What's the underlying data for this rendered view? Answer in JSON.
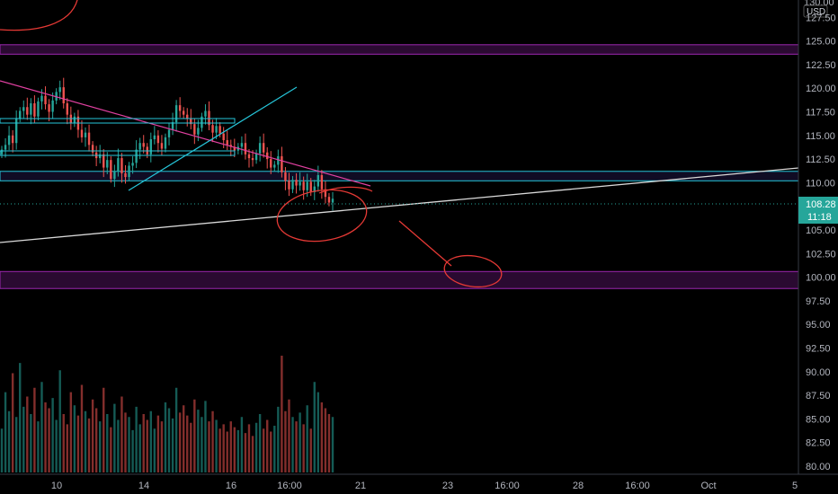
{
  "chart_data": {
    "type": "candlestick",
    "title": "",
    "currency": "USD",
    "price_axis": {
      "min": 80,
      "max": 130,
      "ticks": [
        "127.50",
        "125.00",
        "122.50",
        "120.00",
        "117.50",
        "115.00",
        "112.50",
        "110.00",
        "107.50",
        "105.00",
        "102.50",
        "100.00",
        "97.50",
        "95.00",
        "92.50",
        "90.00",
        "87.50",
        "85.00",
        "82.50",
        "80.00"
      ],
      "top_label_partial": "130.00"
    },
    "time_axis": {
      "ticks": [
        "10",
        "14",
        "16",
        "16:00",
        "21",
        "23",
        "16:00",
        "28",
        "16:00",
        "Oct",
        "5"
      ]
    },
    "last_price": {
      "value": "108.28",
      "countdown": "11:18",
      "color": "#26a69a"
    },
    "zones": [
      {
        "name": "upper-resistance-zone",
        "from": 123.6,
        "to": 124.6,
        "border": "#9c27b0"
      },
      {
        "name": "mid-zone",
        "from": 110.2,
        "to": 111.2,
        "border": "#26c6da"
      },
      {
        "name": "lower-support-zone",
        "from": 98.8,
        "to": 100.6,
        "border": "#9c27b0"
      }
    ],
    "candles": {
      "description_values": "approximate closes read from chart",
      "closes": [
        113.5,
        114.0,
        115.0,
        114.2,
        116.8,
        117.6,
        118.0,
        117.2,
        118.4,
        117.0,
        118.6,
        119.2,
        118.3,
        117.5,
        118.7,
        119.6,
        120.1,
        118.4,
        117.2,
        116.3,
        117.0,
        115.6,
        114.8,
        115.3,
        114.0,
        113.2,
        112.6,
        113.0,
        111.6,
        112.4,
        110.4,
        111.2,
        112.6,
        111.0,
        110.6,
        111.8,
        112.1,
        113.5,
        114.2,
        113.8,
        113.0,
        114.6,
        115.0,
        114.2,
        113.6,
        114.8,
        115.6,
        116.4,
        118.2,
        117.6,
        117.2,
        116.8,
        116.2,
        115.1,
        115.8,
        117.0,
        117.6,
        116.1,
        115.3,
        116.0,
        115.2,
        114.5,
        114.0,
        113.8,
        113.4,
        113.8,
        114.2,
        113.0,
        112.6,
        112.4,
        113.1,
        114.2,
        113.2,
        112.5,
        111.6,
        111.9,
        112.8,
        111.1,
        110.2,
        109.3,
        110.3,
        109.7,
        110.1,
        109.2,
        110.1,
        109.0,
        109.6,
        110.8,
        109.3,
        108.5,
        107.9,
        108.3
      ],
      "volumes": [
        30,
        55,
        42,
        68,
        38,
        75,
        45,
        52,
        40,
        58,
        35,
        62,
        48,
        44,
        51,
        36,
        70,
        40,
        33,
        55,
        46,
        39,
        60,
        42,
        37,
        50,
        44,
        35,
        58,
        40,
        31,
        47,
        36,
        52,
        41,
        38,
        29,
        45,
        33,
        40,
        36,
        42,
        30,
        39,
        35,
        48,
        44,
        37,
        58,
        41,
        46,
        39,
        34,
        50,
        43,
        38,
        49,
        35,
        42,
        36,
        30,
        33,
        28,
        35,
        31,
        29,
        38,
        27,
        33,
        25,
        34,
        40,
        30,
        36,
        28,
        32,
        45,
        80,
        42,
        50,
        38,
        35,
        41,
        33,
        46,
        30,
        62,
        55,
        48,
        44,
        40,
        38
      ]
    }
  }
}
